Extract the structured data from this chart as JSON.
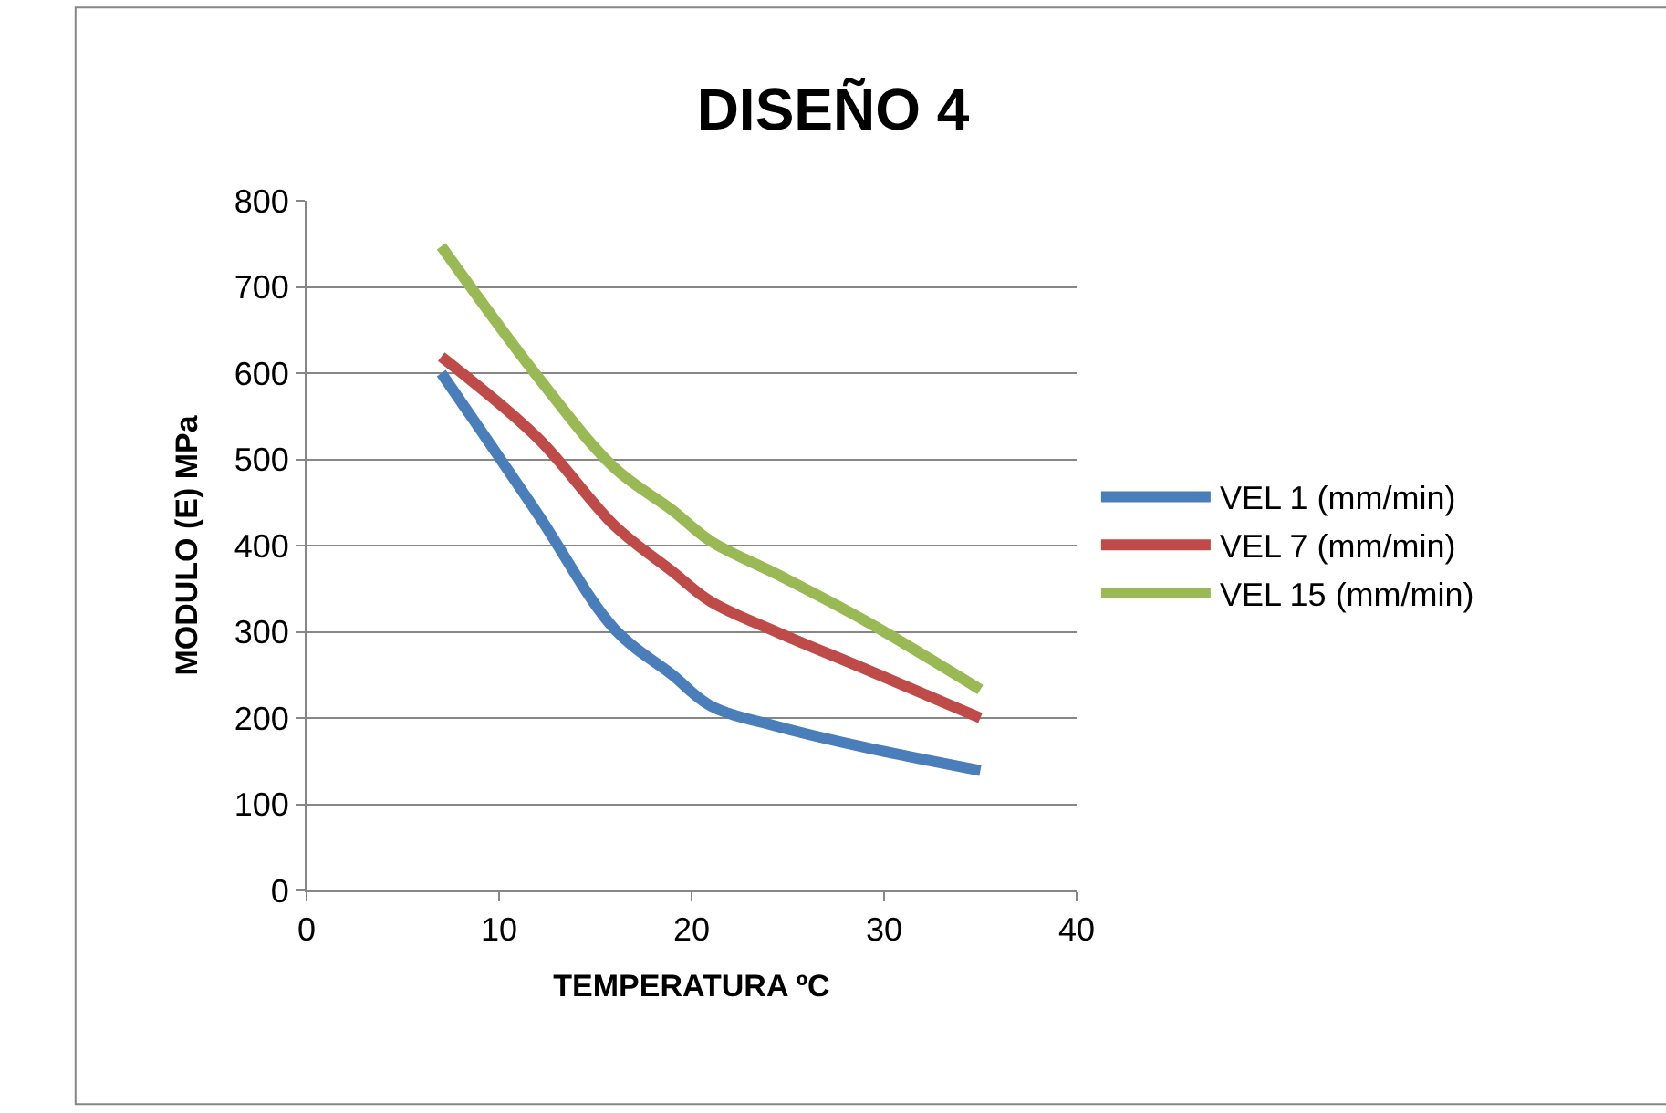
{
  "chart_data": {
    "type": "line",
    "title": "DISEÑO 4",
    "xlabel": "TEMPERATURA ºC",
    "ylabel": "MODULO (E) MPa",
    "x": [
      7,
      12,
      16,
      19,
      21,
      24.5,
      29,
      35
    ],
    "series": [
      {
        "name": "VEL 1 (mm/min)",
        "color": "#4a7ebb",
        "values": [
          600,
          437,
          303,
          250,
          214,
          190,
          166,
          139
        ]
      },
      {
        "name": "VEL 7 (mm/min)",
        "color": "#be4b48",
        "values": [
          619,
          525,
          423,
          370,
          335,
          299,
          257,
          200
        ]
      },
      {
        "name": "VEL 15 (mm/min)",
        "color": "#98b954",
        "values": [
          747,
          596,
          490,
          441,
          405,
          366,
          313,
          233
        ]
      }
    ],
    "xlim": [
      0,
      40
    ],
    "xticks": [
      0,
      10,
      20,
      30,
      40
    ],
    "ylim": [
      0,
      800
    ],
    "yticks": [
      0,
      100,
      200,
      300,
      400,
      500,
      600,
      700,
      800
    ],
    "grid": "y",
    "legend": "right",
    "marker": "none",
    "line_style": "solid"
  }
}
